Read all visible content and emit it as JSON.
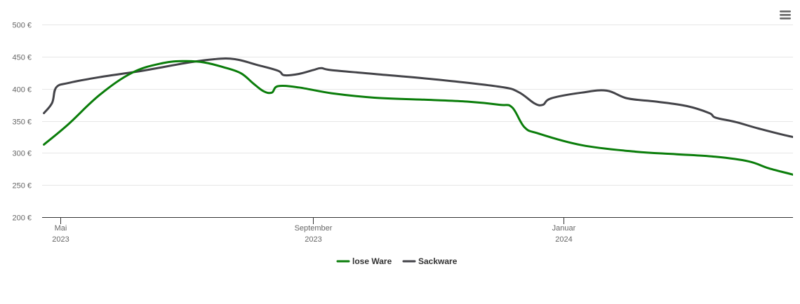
{
  "chart_data": {
    "type": "line",
    "title": "",
    "xlabel": "",
    "ylabel": "",
    "ylim": [
      200,
      500
    ],
    "y_ticks": [
      {
        "value": 200,
        "label": "200 €"
      },
      {
        "value": 250,
        "label": "250 €"
      },
      {
        "value": 300,
        "label": "300 €"
      },
      {
        "value": 350,
        "label": "350 €"
      },
      {
        "value": 400,
        "label": "400 €"
      },
      {
        "value": 450,
        "label": "450 €"
      },
      {
        "value": 500,
        "label": "500 €"
      }
    ],
    "x_range": [
      "2023-04-23",
      "2024-05-01"
    ],
    "x_ticks": [
      {
        "date": "2023-05-01",
        "line1": "Mai",
        "line2": "2023"
      },
      {
        "date": "2023-09-01",
        "line1": "September",
        "line2": "2023"
      },
      {
        "date": "2024-01-01",
        "line1": "Januar",
        "line2": "2024"
      }
    ],
    "grid": true,
    "legend": "bottom-center",
    "series": [
      {
        "name": "lose Ware",
        "color": "#0a7d0a",
        "points": [
          [
            "2023-04-23",
            313
          ],
          [
            "2023-05-05",
            345
          ],
          [
            "2023-05-20",
            390
          ],
          [
            "2023-06-05",
            425
          ],
          [
            "2023-06-20",
            440
          ],
          [
            "2023-07-01",
            443
          ],
          [
            "2023-07-10",
            441
          ],
          [
            "2023-07-20",
            433
          ],
          [
            "2023-07-28",
            424
          ],
          [
            "2023-08-03",
            408
          ],
          [
            "2023-08-08",
            396
          ],
          [
            "2023-08-12",
            394
          ],
          [
            "2023-08-15",
            404
          ],
          [
            "2023-08-25",
            402
          ],
          [
            "2023-09-10",
            393
          ],
          [
            "2023-10-01",
            386
          ],
          [
            "2023-10-25",
            383
          ],
          [
            "2023-11-15",
            380
          ],
          [
            "2023-12-01",
            375
          ],
          [
            "2023-12-07",
            371
          ],
          [
            "2023-12-13",
            340
          ],
          [
            "2023-12-20",
            330
          ],
          [
            "2024-01-10",
            312
          ],
          [
            "2024-02-05",
            302
          ],
          [
            "2024-02-25",
            298
          ],
          [
            "2024-03-15",
            294
          ],
          [
            "2024-03-31",
            287
          ],
          [
            "2024-04-10",
            276
          ],
          [
            "2024-04-22",
            266
          ],
          [
            "2024-05-01",
            258
          ],
          [
            "2024-05-10",
            256
          ]
        ]
      },
      {
        "name": "Sackware",
        "color": "#434348",
        "points": [
          [
            "2023-04-23",
            362
          ],
          [
            "2023-04-27",
            378
          ],
          [
            "2023-04-29",
            402
          ],
          [
            "2023-05-05",
            409
          ],
          [
            "2023-05-20",
            418
          ],
          [
            "2023-06-10",
            428
          ],
          [
            "2023-07-01",
            440
          ],
          [
            "2023-07-15",
            446
          ],
          [
            "2023-07-25",
            446
          ],
          [
            "2023-08-05",
            437
          ],
          [
            "2023-08-15",
            428
          ],
          [
            "2023-08-18",
            421
          ],
          [
            "2023-08-25",
            423
          ],
          [
            "2023-09-01",
            429
          ],
          [
            "2023-09-05",
            432
          ],
          [
            "2023-09-10",
            429
          ],
          [
            "2023-10-01",
            423
          ],
          [
            "2023-11-01",
            414
          ],
          [
            "2023-12-01",
            403
          ],
          [
            "2023-12-10",
            395
          ],
          [
            "2023-12-18",
            377
          ],
          [
            "2023-12-22",
            375
          ],
          [
            "2023-12-26",
            385
          ],
          [
            "2024-01-10",
            394
          ],
          [
            "2024-01-22",
            397
          ],
          [
            "2024-02-01",
            385
          ],
          [
            "2024-02-15",
            380
          ],
          [
            "2024-03-01",
            373
          ],
          [
            "2024-03-12",
            362
          ],
          [
            "2024-03-15",
            355
          ],
          [
            "2024-03-25",
            348
          ],
          [
            "2024-04-05",
            338
          ],
          [
            "2024-04-20",
            326
          ],
          [
            "2024-05-01",
            320
          ],
          [
            "2024-05-10",
            315
          ],
          [
            "2024-05-20",
            313
          ]
        ]
      }
    ]
  }
}
